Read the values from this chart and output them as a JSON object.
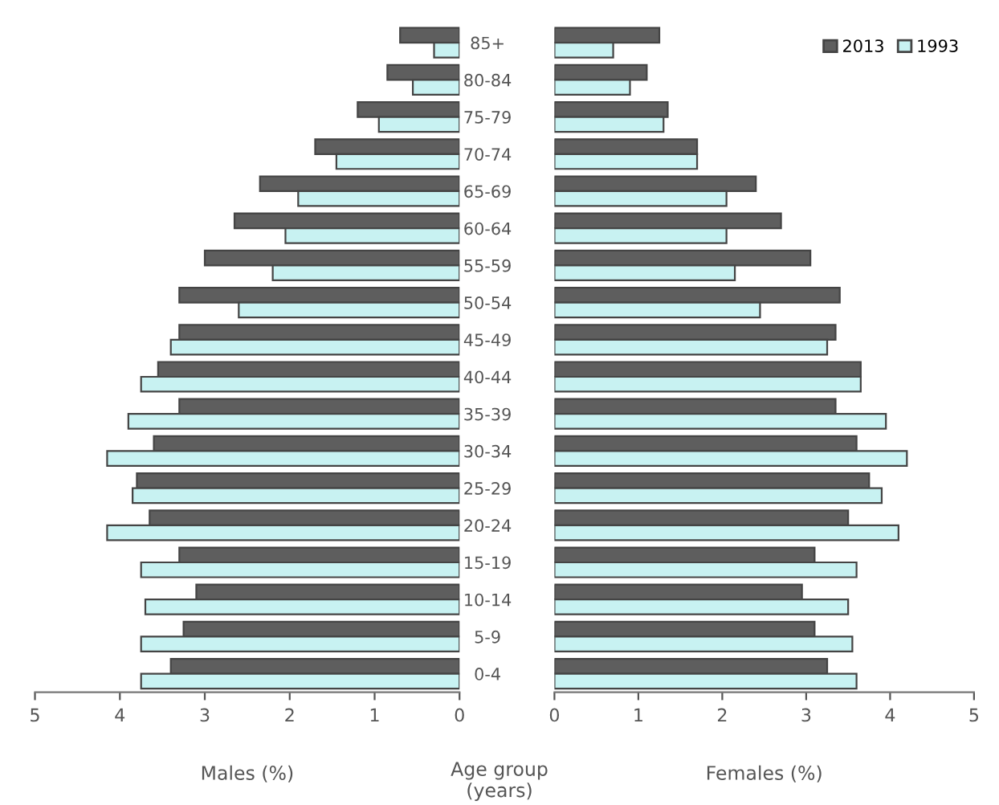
{
  "chart_data": [
    {
      "type": "bar",
      "orientation": "horizontal",
      "xlabel": "Males (%)",
      "categories": [
        null,
        null,
        null,
        null,
        null,
        null,
        null,
        null,
        null,
        null,
        null,
        null,
        null,
        null,
        null,
        null,
        null,
        null
      ],
      "series": [
        {
          "color": "#5e5e5e",
          "values": [
            0.7,
            0.85,
            1.2,
            1.7,
            2.35,
            2.65,
            3.0,
            3.3,
            3.3,
            3.55,
            3.3,
            3.6,
            3.8,
            3.65,
            3.3,
            3.1,
            3.25,
            3.4
          ]
        },
        {
          "color": "#c8f2f2",
          "values": [
            0.3,
            0.55,
            0.95,
            1.45,
            1.9,
            2.05,
            2.2,
            2.6,
            3.4,
            3.75,
            3.9,
            4.15,
            3.85,
            4.15,
            3.75,
            3.7,
            3.75,
            3.75
          ]
        }
      ],
      "xlim": [
        5,
        0
      ],
      "xticks": [
        5,
        4,
        3,
        2,
        1,
        0
      ],
      "tick_labels": "x",
      "grid": false,
      "legend": false
    },
    {
      "type": "bar",
      "orientation": "horizontal",
      "xlabel": "Females (%)",
      "annotations": [
        "Age group\n(years)"
      ],
      "categories": [
        "85+",
        "80-84",
        "75-79",
        "70-74",
        "65-69",
        "60-64",
        "55-59",
        "50-54",
        "45-49",
        "40-44",
        "35-39",
        "30-34",
        "25-29",
        "20-24",
        "15-19",
        "10-14",
        "5-9",
        "0-4"
      ],
      "series": [
        {
          "name": "2013",
          "color": "#5e5e5e",
          "values": [
            1.25,
            1.1,
            1.35,
            1.7,
            2.4,
            2.7,
            3.05,
            3.4,
            3.35,
            3.65,
            3.35,
            3.6,
            3.75,
            3.5,
            3.1,
            2.95,
            3.1,
            3.25
          ]
        },
        {
          "name": "1993",
          "color": "#c8f2f2",
          "values": [
            0.7,
            0.9,
            1.3,
            1.7,
            2.05,
            2.05,
            2.15,
            2.45,
            3.25,
            3.65,
            3.95,
            4.2,
            3.9,
            4.1,
            3.6,
            3.5,
            3.55,
            3.6
          ]
        }
      ],
      "xlim": [
        0,
        5
      ],
      "xticks": [
        0,
        1,
        2,
        3,
        4,
        5
      ],
      "grid": false,
      "legend": "top right"
    }
  ]
}
